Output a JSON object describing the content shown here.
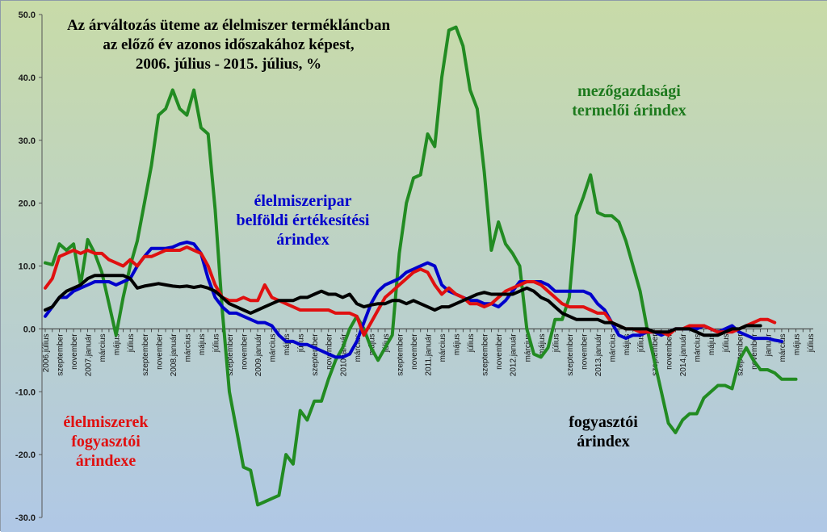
{
  "chart_data": {
    "type": "line",
    "title_lines": [
      "Az árváltozás üteme az élelmiszer termékláncban",
      "az előző év azonos időszakához képest,",
      "2006. július - 2015. július, %"
    ],
    "ylim": [
      -30,
      50
    ],
    "y_ticks": [
      "50.0",
      "40.0",
      "30.0",
      "20.0",
      "10.0",
      "0.0",
      "-10.0",
      "-20.0",
      "-30.0"
    ],
    "x_tick_labels": [
      "2006.július",
      "szeptember",
      "november",
      "2007.január",
      "március",
      "május",
      "július",
      "szeptember",
      "november",
      "2008.január",
      "március",
      "május",
      "július",
      "szeptember",
      "november",
      "2009.január",
      "március",
      "május",
      "július",
      "szeptember",
      "november",
      "2010.január",
      "március",
      "május",
      "július",
      "szeptember",
      "november",
      "2011.január",
      "március",
      "május",
      "július",
      "szeptember",
      "november",
      "2012.január",
      "március",
      "május",
      "július",
      "szeptember",
      "november",
      "2013.január",
      "március",
      "május",
      "július",
      "szeptember",
      "november",
      "2014.január",
      "március",
      "május",
      "július",
      "szeptember",
      "november",
      "január",
      "március",
      "május",
      "július"
    ],
    "series": [
      {
        "key": "green",
        "name": "mezőgazdasági termelői árindex",
        "color": "#228b22",
        "values": [
          10.5,
          10.2,
          13.5,
          12.5,
          13.5,
          7.0,
          14.2,
          12.0,
          9.0,
          4.0,
          -1.0,
          5.0,
          10.0,
          14.0,
          20.0,
          26.0,
          34.0,
          35.0,
          38.0,
          35.0,
          34.0,
          38.0,
          32.0,
          31.0,
          19.0,
          3.0,
          -10.0,
          -16.0,
          -22.0,
          -22.5,
          -28.0,
          -27.5,
          -27.0,
          -26.5,
          -20.0,
          -21.5,
          -13.0,
          -14.5,
          -11.5,
          -11.5,
          -8.0,
          -5.0,
          -3.0,
          0.0,
          2.0,
          0.0,
          -3.0,
          -5.0,
          -3.0,
          -1.0,
          12.0,
          20.0,
          24.0,
          24.5,
          31.0,
          29.0,
          40.0,
          47.5,
          48.0,
          45.0,
          38.0,
          35.0,
          25.0,
          12.5,
          17.0,
          13.5,
          12.0,
          10.0,
          0.0,
          -4.0,
          -4.5,
          -3.0,
          1.5,
          1.5,
          5.0,
          18.0,
          21.0,
          24.5,
          18.5,
          18.0,
          18.0,
          17.0,
          14.0,
          10.0,
          6.0,
          0.0,
          -5.0,
          -10.0,
          -15.0,
          -16.5,
          -14.5,
          -13.5,
          -13.5,
          -11.0,
          -10.0,
          -9.0,
          -9.0,
          -9.5,
          -5.0,
          -3.0,
          -5.0,
          -6.5,
          -6.5,
          -7.0,
          -8.0,
          -8.0,
          -8.0
        ]
      },
      {
        "key": "blue",
        "name": "élelmiszeripar belföldi értékesítési árindex",
        "color": "#0000cc",
        "values": [
          2.0,
          3.5,
          5.0,
          5.0,
          6.0,
          6.5,
          7.0,
          7.5,
          7.5,
          7.5,
          7.0,
          7.5,
          8.0,
          10.0,
          11.5,
          12.8,
          12.8,
          12.8,
          13.0,
          13.5,
          13.8,
          13.5,
          12.0,
          8.0,
          5.0,
          3.5,
          2.5,
          2.5,
          2.0,
          1.5,
          1.0,
          1.0,
          0.5,
          -1.0,
          -2.0,
          -2.0,
          -2.5,
          -2.5,
          -3.0,
          -3.5,
          -4.0,
          -4.5,
          -4.5,
          -4.0,
          -2.0,
          1.0,
          4.0,
          6.0,
          7.0,
          7.5,
          8.0,
          9.0,
          9.5,
          10.0,
          10.5,
          10.0,
          7.0,
          6.0,
          5.5,
          5.0,
          4.5,
          4.5,
          4.0,
          4.0,
          3.5,
          4.5,
          6.0,
          7.5,
          7.5,
          7.5,
          7.5,
          7.0,
          6.0,
          6.0,
          6.0,
          6.0,
          6.0,
          5.5,
          4.0,
          3.0,
          1.0,
          -1.0,
          -1.5,
          -1.0,
          -1.0,
          -0.5,
          -0.5,
          -1.0,
          -0.5,
          0.0,
          0.0,
          0.0,
          0.0,
          0.5,
          0.0,
          -0.5,
          0.0,
          0.5,
          -0.5,
          -1.0,
          -1.5,
          -1.5,
          -1.5,
          -1.8,
          -2.0
        ]
      },
      {
        "key": "red",
        "name": "élelmiszerek fogyasztói árindexe",
        "color": "#e01010",
        "values": [
          6.5,
          8.0,
          11.5,
          12.0,
          12.5,
          12.0,
          12.5,
          12.0,
          12.0,
          11.0,
          10.5,
          10.0,
          11.0,
          10.0,
          11.5,
          11.5,
          12.0,
          12.5,
          12.5,
          12.5,
          13.0,
          12.5,
          12.0,
          10.0,
          7.0,
          5.0,
          4.5,
          4.5,
          5.0,
          4.5,
          4.5,
          7.0,
          5.0,
          4.5,
          4.0,
          3.5,
          3.0,
          3.0,
          3.0,
          3.0,
          3.0,
          2.5,
          2.5,
          2.5,
          2.0,
          -1.0,
          1.0,
          3.0,
          5.0,
          6.0,
          7.0,
          8.0,
          9.0,
          9.5,
          9.0,
          7.0,
          5.5,
          6.5,
          5.5,
          5.0,
          4.0,
          4.0,
          3.5,
          4.0,
          5.0,
          6.0,
          6.5,
          7.0,
          7.5,
          7.5,
          7.0,
          6.0,
          5.0,
          4.0,
          3.5,
          3.5,
          3.5,
          3.0,
          2.5,
          2.5,
          1.0,
          0.5,
          0.0,
          0.0,
          -0.5,
          -0.5,
          -0.5,
          -0.5,
          -1.0,
          0.0,
          0.0,
          0.5,
          0.5,
          0.5,
          0.0,
          -0.5,
          -0.5,
          -0.5,
          0.0,
          0.5,
          1.0,
          1.5,
          1.5,
          1.0
        ]
      },
      {
        "key": "black",
        "name": "fogyasztói árindex",
        "color": "#000000",
        "values": [
          3.0,
          3.5,
          5.0,
          6.0,
          6.5,
          7.0,
          8.0,
          8.5,
          8.5,
          8.5,
          8.5,
          8.5,
          8.0,
          6.5,
          6.8,
          7.0,
          7.2,
          7.0,
          6.8,
          6.7,
          6.8,
          6.6,
          6.8,
          6.5,
          6.0,
          5.0,
          4.0,
          3.5,
          3.0,
          2.5,
          3.0,
          3.5,
          4.0,
          4.5,
          4.5,
          4.5,
          5.0,
          5.0,
          5.5,
          6.0,
          5.5,
          5.5,
          5.0,
          5.5,
          4.0,
          3.5,
          3.8,
          4.0,
          4.0,
          4.5,
          4.5,
          4.0,
          4.5,
          4.0,
          3.5,
          3.0,
          3.5,
          3.5,
          4.0,
          4.5,
          5.0,
          5.5,
          5.8,
          5.5,
          5.5,
          5.5,
          5.5,
          6.0,
          6.5,
          6.0,
          5.0,
          4.5,
          3.5,
          2.5,
          2.0,
          1.5,
          1.5,
          1.5,
          1.5,
          1.0,
          1.0,
          0.5,
          0.0,
          0.0,
          0.0,
          0.0,
          -0.5,
          -0.5,
          -0.5,
          0.0,
          0.0,
          0.0,
          -0.5,
          -1.0,
          -1.0,
          -1.0,
          -0.5,
          0.0,
          0.0,
          0.5,
          0.5,
          0.5
        ]
      }
    ],
    "annotations": [
      {
        "key": "green",
        "lines": [
          "mezőgazdasági",
          "termelői árindex"
        ],
        "color": "#1e7a1e"
      },
      {
        "key": "blue",
        "lines": [
          "élelmiszeripar",
          "belföldi értékesítési",
          "árindex"
        ],
        "color": "#0000cc"
      },
      {
        "key": "red",
        "lines": [
          "élelmiszerek",
          "fogyasztói",
          "árindexe"
        ],
        "color": "#e01010"
      },
      {
        "key": "black",
        "lines": [
          "fogyasztói",
          "árindex"
        ],
        "color": "#000000"
      }
    ],
    "grid": false,
    "background": {
      "top": "#c8dba8",
      "bottom": "#b0c8e6"
    }
  }
}
